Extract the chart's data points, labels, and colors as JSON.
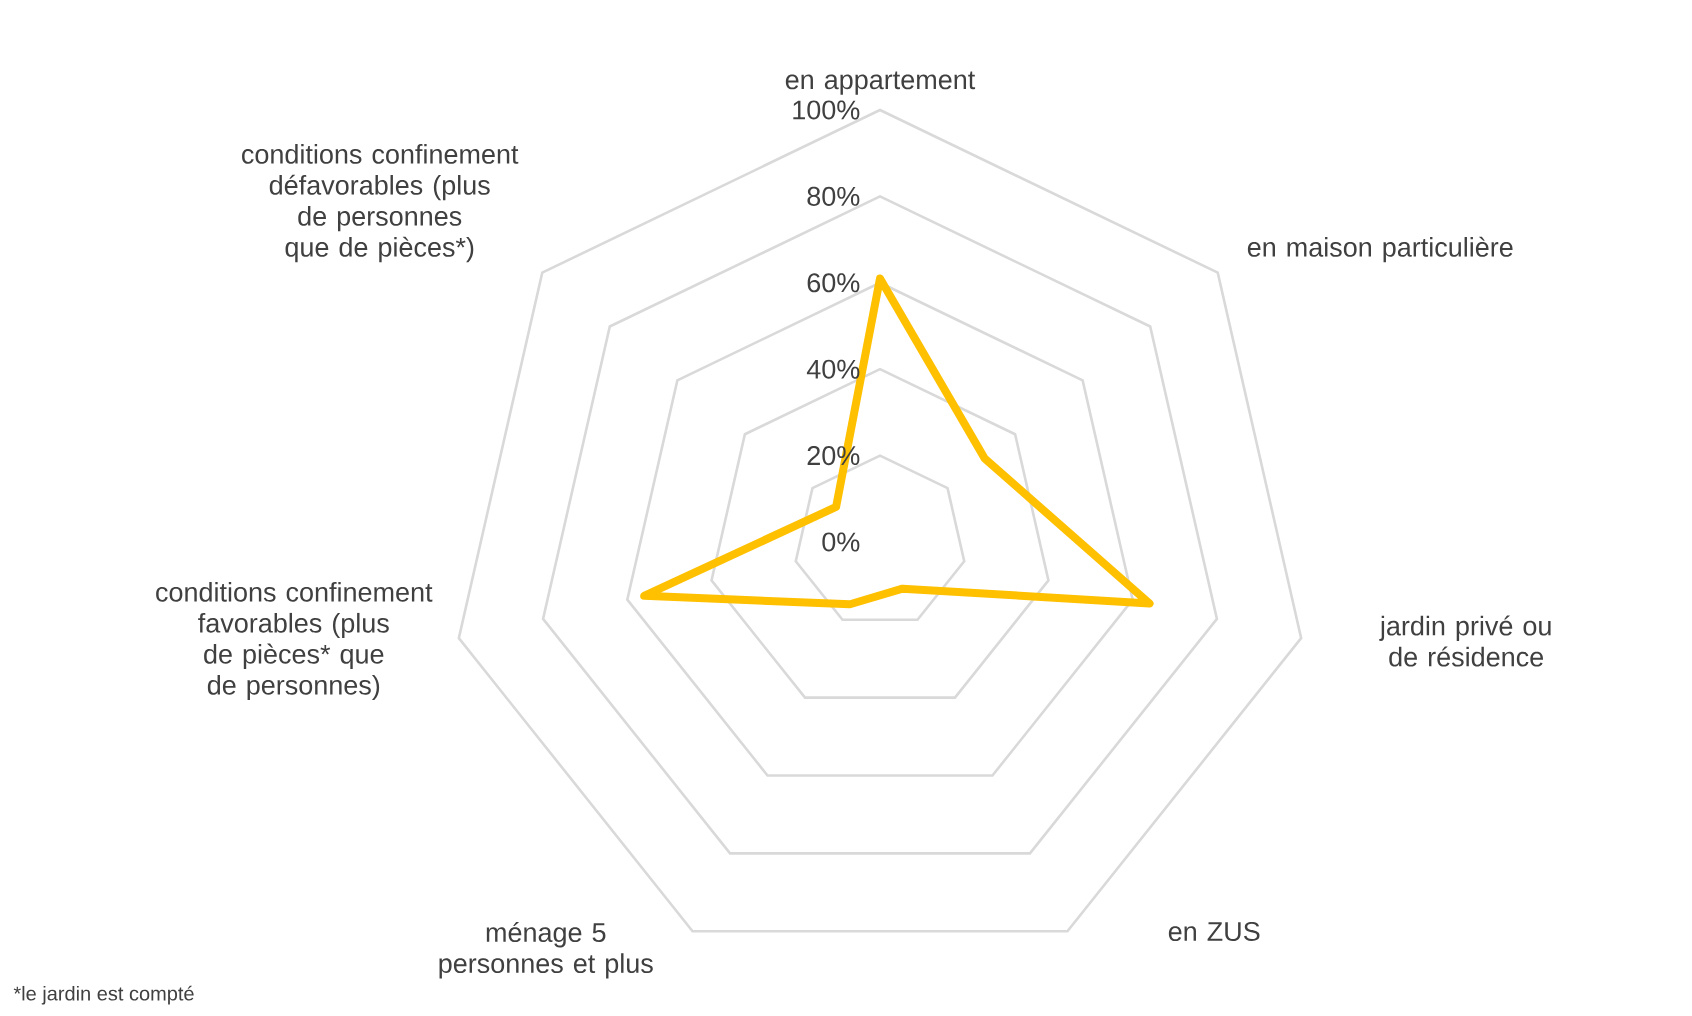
{
  "chart_data": {
    "type": "radar",
    "categories": [
      "en appartement",
      "en maison particulière",
      "jardin privé ou de résidence",
      "en ZUS",
      "ménage 5 personnes et plus",
      "conditions confinement favorables (plus de pièces* que de personnes)",
      "conditions confinement défavorables (plus de personnes que de pièces*)"
    ],
    "series": [
      {
        "color": "#ffc000",
        "values": [
          61,
          31,
          64,
          12,
          16,
          56,
          13
        ]
      }
    ],
    "ylim": [
      0,
      100
    ],
    "yticks": [
      {
        "value": 0,
        "label": "0%"
      },
      {
        "value": 20,
        "label": "20%"
      },
      {
        "value": 40,
        "label": "40%"
      },
      {
        "value": 60,
        "label": "60%"
      },
      {
        "value": 80,
        "label": "80%"
      },
      {
        "value": 100,
        "label": "100%"
      }
    ],
    "grid": true,
    "annotations": [
      "*le jardin est compté"
    ]
  }
}
